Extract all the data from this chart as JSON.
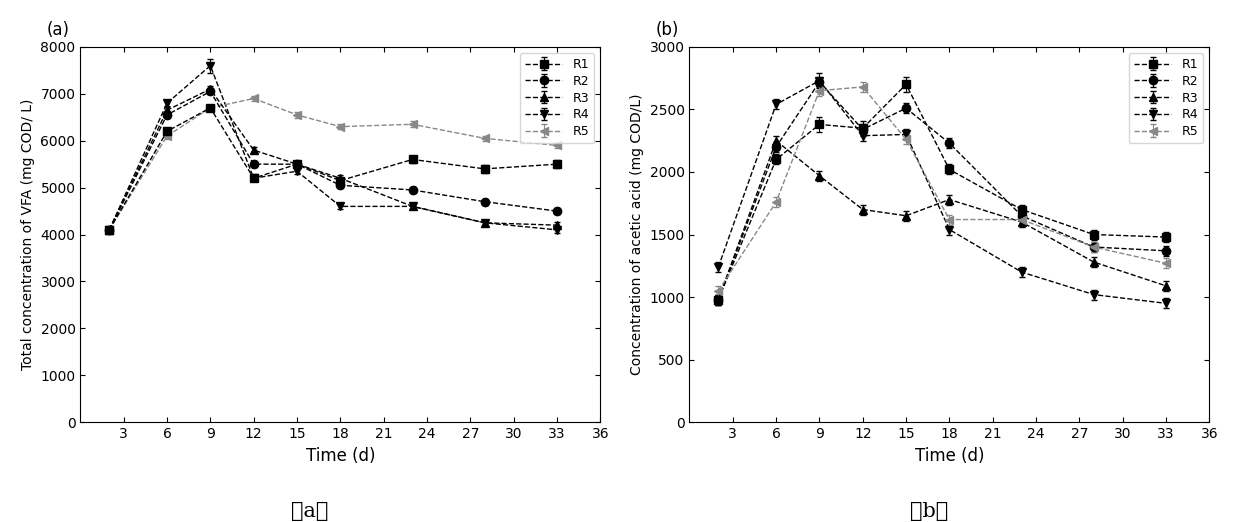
{
  "time": [
    2,
    6,
    9,
    12,
    15,
    18,
    23,
    28,
    33
  ],
  "R1_a": [
    4100,
    6200,
    6700,
    5200,
    5500,
    5150,
    5600,
    5400,
    5500
  ],
  "R2_a": [
    4100,
    6550,
    7050,
    5500,
    5500,
    5050,
    4950,
    4700,
    4500
  ],
  "R3_a": [
    4100,
    6650,
    7100,
    5800,
    5500,
    5200,
    4600,
    4250,
    4200
  ],
  "R4_a": [
    4100,
    6800,
    7600,
    5200,
    5350,
    4600,
    4600,
    4250,
    4100
  ],
  "R5_a": [
    4100,
    6100,
    6700,
    6900,
    6550,
    6300,
    6350,
    6050,
    5900
  ],
  "R1_a_err": [
    60,
    60,
    60,
    60,
    60,
    60,
    80,
    80,
    80
  ],
  "R2_a_err": [
    60,
    60,
    60,
    60,
    60,
    60,
    60,
    60,
    60
  ],
  "R3_a_err": [
    60,
    60,
    60,
    60,
    60,
    60,
    60,
    60,
    60
  ],
  "R4_a_err": [
    60,
    60,
    150,
    60,
    60,
    60,
    60,
    60,
    60
  ],
  "R5_a_err": [
    60,
    60,
    60,
    60,
    60,
    60,
    60,
    60,
    60
  ],
  "R1_b": [
    980,
    2100,
    2380,
    2350,
    2700,
    2020,
    1700,
    1500,
    1480
  ],
  "R2_b": [
    980,
    2200,
    2720,
    2340,
    2510,
    2230,
    1650,
    1400,
    1370
  ],
  "R3_b": [
    980,
    2250,
    1970,
    1700,
    1650,
    1780,
    1600,
    1280,
    1090
  ],
  "R4_b": [
    1240,
    2540,
    2730,
    2290,
    2300,
    1540,
    1200,
    1020,
    950
  ],
  "R5_b": [
    1050,
    1760,
    2650,
    2680,
    2260,
    1620,
    1620,
    1400,
    1270
  ],
  "R1_b_err": [
    40,
    40,
    60,
    60,
    60,
    40,
    40,
    40,
    40
  ],
  "R2_b_err": [
    40,
    40,
    40,
    40,
    40,
    40,
    40,
    40,
    40
  ],
  "R3_b_err": [
    40,
    40,
    40,
    40,
    40,
    40,
    40,
    40,
    40
  ],
  "R4_b_err": [
    40,
    40,
    60,
    40,
    40,
    40,
    40,
    40,
    40
  ],
  "R5_b_err": [
    40,
    40,
    40,
    40,
    40,
    40,
    40,
    40,
    40
  ],
  "ylabel_a": "Total concentration of VFA (mg COD/ L)",
  "ylabel_b": "Concentration of acetic acid (mg COD/L)",
  "xlabel": "Time (d)",
  "panel_label_a": "(a)",
  "panel_label_b": "(b)",
  "caption_a": "( a )",
  "caption_b": "( b )",
  "legends": [
    "R1",
    "R2",
    "R3",
    "R4",
    "R5"
  ],
  "markers": [
    "s",
    "o",
    "^",
    "v",
    "4"
  ],
  "black_color": "#000000",
  "gray_color": "#888888",
  "xticks": [
    3,
    6,
    9,
    12,
    15,
    18,
    21,
    24,
    27,
    30,
    33,
    36
  ],
  "ylim_a": [
    0,
    8000
  ],
  "ylim_b": [
    0,
    3000
  ],
  "yticks_a": [
    0,
    1000,
    2000,
    3000,
    4000,
    5000,
    6000,
    7000,
    8000
  ],
  "yticks_b": [
    0,
    500,
    1000,
    1500,
    2000,
    2500,
    3000
  ]
}
